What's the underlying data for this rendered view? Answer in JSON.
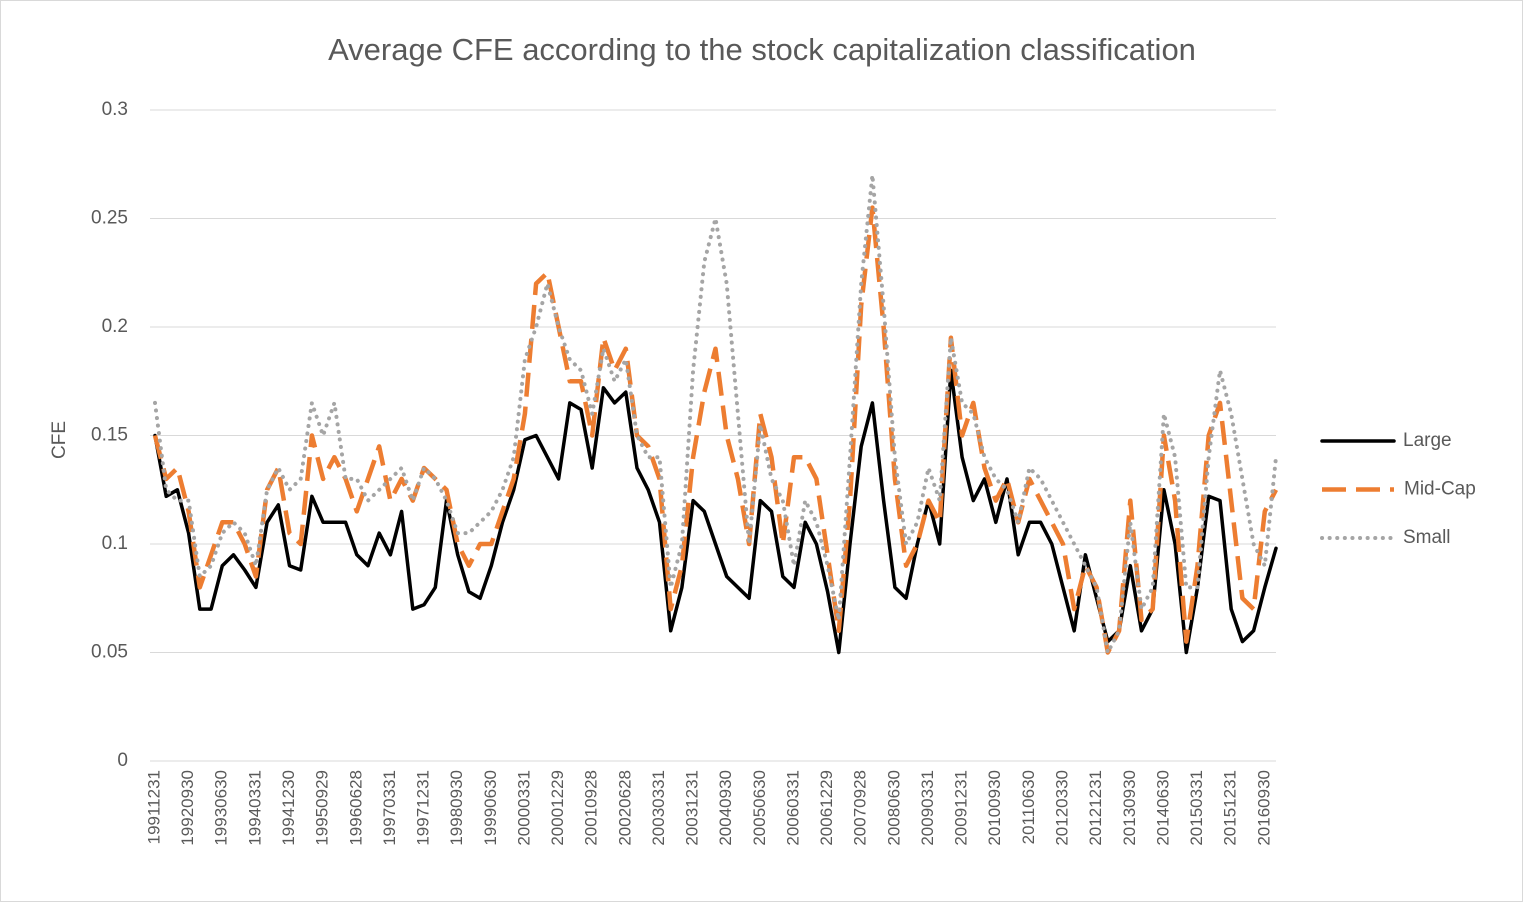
{
  "chart_data": {
    "type": "line",
    "title": "Average CFE according to the stock capitalization classification",
    "y_label": "CFE",
    "categories": [
      "19911231",
      null,
      null,
      "19920930",
      null,
      null,
      "19930630",
      null,
      null,
      "19940331",
      null,
      null,
      "19941230",
      null,
      null,
      "19950929",
      null,
      null,
      "19960628",
      null,
      null,
      "19970331",
      null,
      null,
      "19971231",
      null,
      null,
      "19980930",
      null,
      null,
      "19990630",
      null,
      null,
      "20000331",
      null,
      null,
      "20001229",
      null,
      null,
      "20010928",
      null,
      null,
      "20020628",
      null,
      null,
      "20030331",
      null,
      null,
      "20031231",
      null,
      null,
      "20040930",
      null,
      null,
      "20050630",
      null,
      null,
      "20060331",
      null,
      null,
      "20061229",
      null,
      null,
      "20070928",
      null,
      null,
      "20080630",
      null,
      null,
      "20090331",
      null,
      null,
      "20091231",
      null,
      null,
      "20100930",
      null,
      null,
      "20110630",
      null,
      null,
      "20120330",
      null,
      null,
      "20121231",
      null,
      null,
      "20130930",
      null,
      null,
      "20140630",
      null,
      null,
      "20150331",
      null,
      null,
      "20151231",
      null,
      null,
      "20160930",
      null
    ],
    "series": [
      {
        "name": "Large",
        "color": "#000000",
        "style": "solid",
        "values": [
          0.15,
          0.122,
          0.125,
          0.105,
          0.07,
          0.07,
          0.09,
          0.095,
          0.088,
          0.08,
          0.11,
          0.118,
          0.09,
          0.088,
          0.122,
          0.11,
          0.11,
          0.11,
          0.095,
          0.09,
          0.105,
          0.095,
          0.115,
          0.07,
          0.072,
          0.08,
          0.12,
          0.095,
          0.078,
          0.075,
          0.09,
          0.11,
          0.125,
          0.148,
          0.15,
          0.14,
          0.13,
          0.165,
          0.162,
          0.135,
          0.172,
          0.165,
          0.17,
          0.135,
          0.125,
          0.11,
          0.06,
          0.08,
          0.12,
          0.115,
          0.1,
          0.085,
          0.08,
          0.075,
          0.12,
          0.115,
          0.085,
          0.08,
          0.11,
          0.1,
          0.078,
          0.05,
          0.1,
          0.145,
          0.165,
          0.12,
          0.08,
          0.075,
          0.1,
          0.12,
          0.1,
          0.18,
          0.14,
          0.12,
          0.13,
          0.11,
          0.13,
          0.095,
          0.11,
          0.11,
          0.1,
          0.08,
          0.06,
          0.095,
          0.075,
          0.055,
          0.06,
          0.09,
          0.06,
          0.07,
          0.125,
          0.1,
          0.05,
          0.08,
          0.122,
          0.12,
          0.07,
          0.055,
          0.06,
          0.08,
          0.098
        ]
      },
      {
        "name": "Mid-Cap",
        "color": "#ed7d31",
        "style": "dash",
        "values": [
          0.15,
          0.13,
          0.135,
          0.115,
          0.08,
          0.095,
          0.11,
          0.11,
          0.1,
          0.085,
          0.125,
          0.135,
          0.105,
          0.1,
          0.15,
          0.13,
          0.14,
          0.13,
          0.115,
          0.13,
          0.145,
          0.12,
          0.13,
          0.12,
          0.135,
          0.13,
          0.125,
          0.1,
          0.09,
          0.1,
          0.1,
          0.115,
          0.13,
          0.16,
          0.22,
          0.225,
          0.2,
          0.175,
          0.175,
          0.15,
          0.195,
          0.18,
          0.19,
          0.15,
          0.145,
          0.13,
          0.07,
          0.09,
          0.14,
          0.17,
          0.19,
          0.15,
          0.13,
          0.1,
          0.16,
          0.14,
          0.1,
          0.14,
          0.14,
          0.13,
          0.095,
          0.06,
          0.12,
          0.21,
          0.255,
          0.2,
          0.13,
          0.09,
          0.1,
          0.12,
          0.11,
          0.195,
          0.15,
          0.165,
          0.135,
          0.12,
          0.13,
          0.11,
          0.13,
          0.12,
          0.11,
          0.1,
          0.07,
          0.09,
          0.08,
          0.05,
          0.06,
          0.12,
          0.065,
          0.07,
          0.15,
          0.12,
          0.055,
          0.09,
          0.15,
          0.165,
          0.12,
          0.075,
          0.07,
          0.115,
          0.125
        ]
      },
      {
        "name": "Small",
        "color": "#a5a5a5",
        "style": "dot",
        "values": [
          0.165,
          0.125,
          0.12,
          0.12,
          0.085,
          0.09,
          0.105,
          0.11,
          0.105,
          0.09,
          0.125,
          0.135,
          0.125,
          0.13,
          0.165,
          0.15,
          0.165,
          0.13,
          0.13,
          0.12,
          0.125,
          0.13,
          0.135,
          0.12,
          0.135,
          0.13,
          0.12,
          0.105,
          0.105,
          0.11,
          0.115,
          0.125,
          0.14,
          0.185,
          0.2,
          0.22,
          0.2,
          0.185,
          0.18,
          0.16,
          0.19,
          0.175,
          0.185,
          0.15,
          0.14,
          0.14,
          0.08,
          0.1,
          0.18,
          0.23,
          0.25,
          0.22,
          0.16,
          0.1,
          0.155,
          0.13,
          0.12,
          0.09,
          0.12,
          0.11,
          0.09,
          0.065,
          0.14,
          0.22,
          0.27,
          0.21,
          0.14,
          0.1,
          0.11,
          0.135,
          0.12,
          0.195,
          0.165,
          0.16,
          0.14,
          0.13,
          0.125,
          0.11,
          0.135,
          0.13,
          0.12,
          0.11,
          0.1,
          0.09,
          0.08,
          0.05,
          0.06,
          0.11,
          0.07,
          0.08,
          0.16,
          0.14,
          0.08,
          0.08,
          0.14,
          0.18,
          0.16,
          0.13,
          0.1,
          0.09,
          0.14
        ]
      }
    ],
    "ylim": [
      0,
      0.3
    ],
    "yticks": [
      0,
      0.05,
      0.1,
      0.15,
      0.2,
      0.25,
      0.3
    ],
    "grid": true,
    "legend": "right"
  }
}
